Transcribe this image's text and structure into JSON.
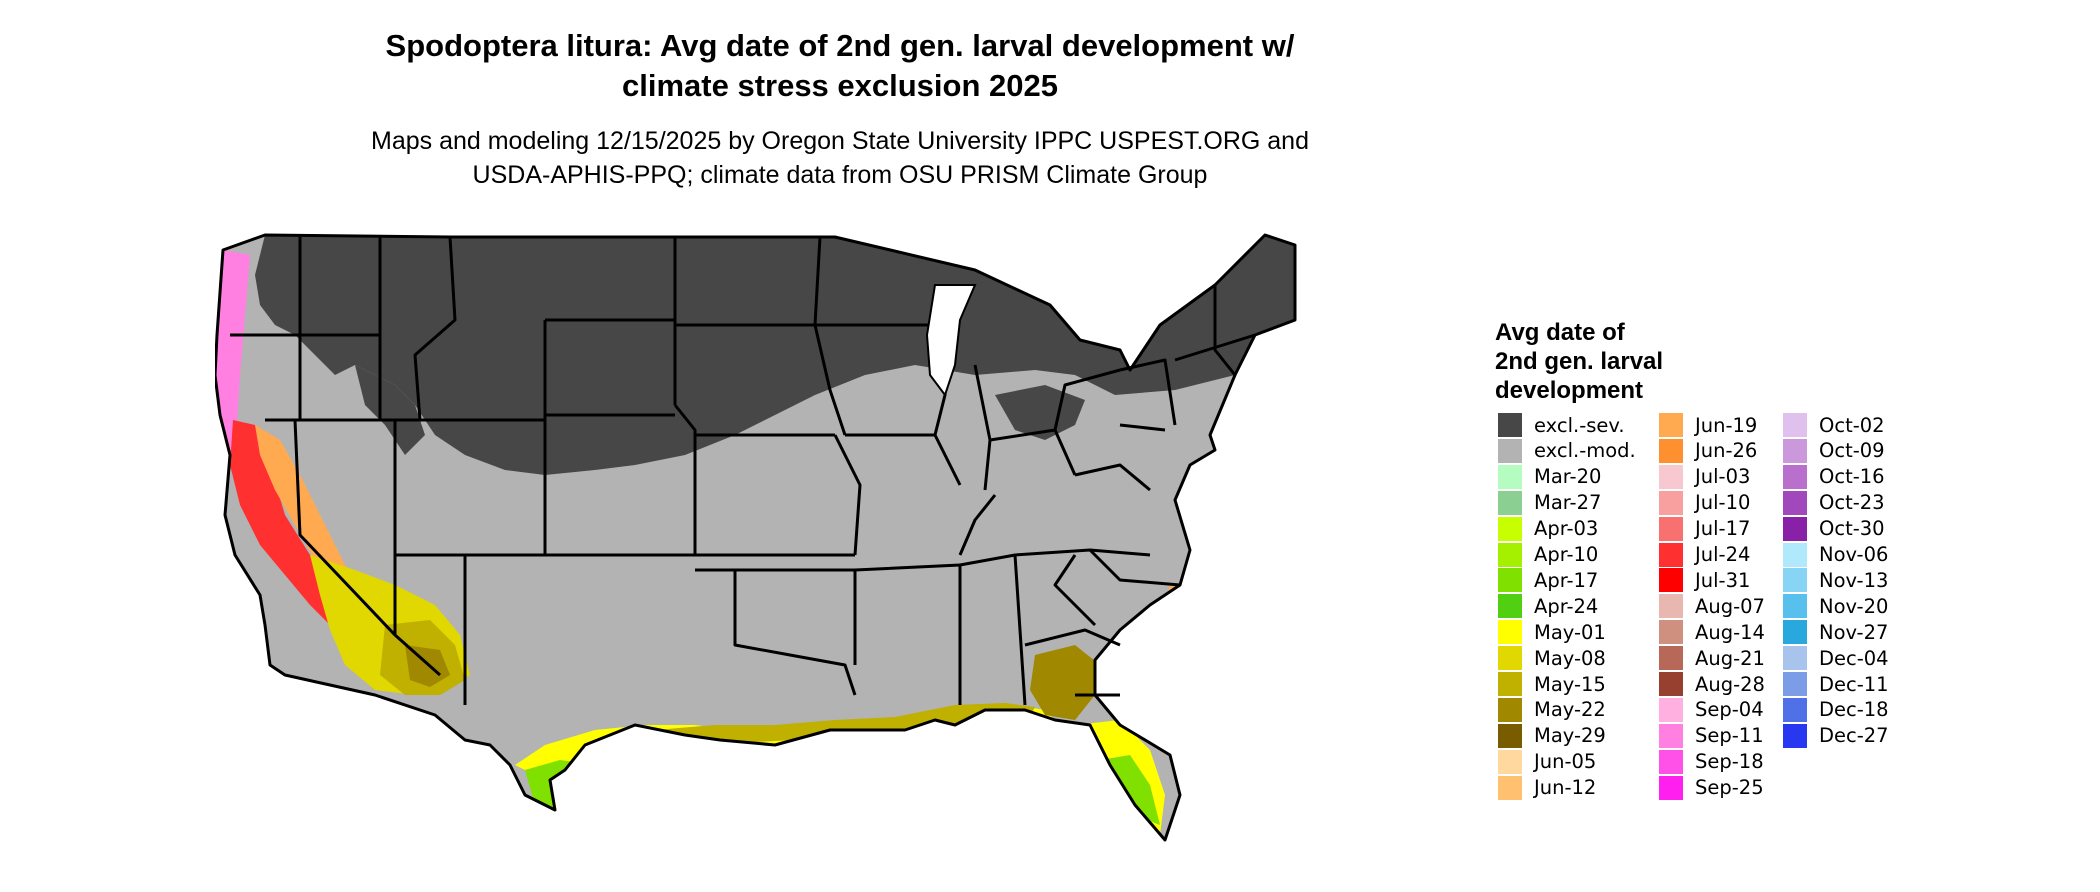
{
  "title": {
    "line1": "Spodoptera litura: Avg date of 2nd gen. larval development w/",
    "line2": "climate stress exclusion 2025"
  },
  "subtitle": {
    "line1": "Maps and modeling 12/15/2025 by Oregon State University IPPC USPEST.ORG and",
    "line2": "USDA-APHIS-PPQ; climate data from OSU PRISM Climate Group"
  },
  "map": {
    "region": "contiguous-united-states",
    "colors": {
      "excluded_severe": "#474747",
      "excluded_moderate": "#b3b3b3",
      "state_border": "#000000"
    }
  },
  "legend": {
    "title_line1": "Avg date of",
    "title_line2": "2nd gen. larval",
    "title_line3": "development",
    "items": [
      {
        "label": "excl.-sev.",
        "color": "#474747"
      },
      {
        "label": "excl.-mod.",
        "color": "#b3b3b3"
      },
      {
        "label": "Mar-20",
        "color": "#b4fcc0"
      },
      {
        "label": "Mar-27",
        "color": "#8ccf93"
      },
      {
        "label": "Apr-03",
        "color": "#c8ff00"
      },
      {
        "label": "Apr-10",
        "color": "#a4f000"
      },
      {
        "label": "Apr-17",
        "color": "#80e000"
      },
      {
        "label": "Apr-24",
        "color": "#50d010"
      },
      {
        "label": "May-01",
        "color": "#ffff00"
      },
      {
        "label": "May-08",
        "color": "#e0d800"
      },
      {
        "label": "May-15",
        "color": "#c0b000"
      },
      {
        "label": "May-22",
        "color": "#a08800"
      },
      {
        "label": "May-29",
        "color": "#7a5c00"
      },
      {
        "label": "Jun-05",
        "color": "#ffd8a0"
      },
      {
        "label": "Jun-12",
        "color": "#ffc070"
      },
      {
        "label": "Jun-19",
        "color": "#ffaa50"
      },
      {
        "label": "Jun-26",
        "color": "#ff9030"
      },
      {
        "label": "Jul-03",
        "color": "#f8c8d0"
      },
      {
        "label": "Jul-10",
        "color": "#f8a0a0"
      },
      {
        "label": "Jul-17",
        "color": "#f87070"
      },
      {
        "label": "Jul-24",
        "color": "#ff3030"
      },
      {
        "label": "Jul-31",
        "color": "#ff0000"
      },
      {
        "label": "Aug-07",
        "color": "#e8b8b0"
      },
      {
        "label": "Aug-14",
        "color": "#d09080"
      },
      {
        "label": "Aug-21",
        "color": "#b86858"
      },
      {
        "label": "Aug-28",
        "color": "#984030"
      },
      {
        "label": "Sep-04",
        "color": "#ffb0e0"
      },
      {
        "label": "Sep-11",
        "color": "#ff80e0"
      },
      {
        "label": "Sep-18",
        "color": "#ff50e8"
      },
      {
        "label": "Sep-25",
        "color": "#ff20f0"
      },
      {
        "label": "Oct-02",
        "color": "#e0c0ec"
      },
      {
        "label": "Oct-09",
        "color": "#cc98dc"
      },
      {
        "label": "Oct-16",
        "color": "#b870cc"
      },
      {
        "label": "Oct-23",
        "color": "#a048bc"
      },
      {
        "label": "Oct-30",
        "color": "#8820a8"
      },
      {
        "label": "Nov-06",
        "color": "#b0e8fc"
      },
      {
        "label": "Nov-13",
        "color": "#88d4f4"
      },
      {
        "label": "Nov-20",
        "color": "#58c0ec"
      },
      {
        "label": "Nov-27",
        "color": "#28a8dc"
      },
      {
        "label": "Dec-04",
        "color": "#a8c4ec"
      },
      {
        "label": "Dec-11",
        "color": "#7c9ce8"
      },
      {
        "label": "Dec-18",
        "color": "#5070e8"
      },
      {
        "label": "Dec-27",
        "color": "#2838f0"
      }
    ]
  }
}
